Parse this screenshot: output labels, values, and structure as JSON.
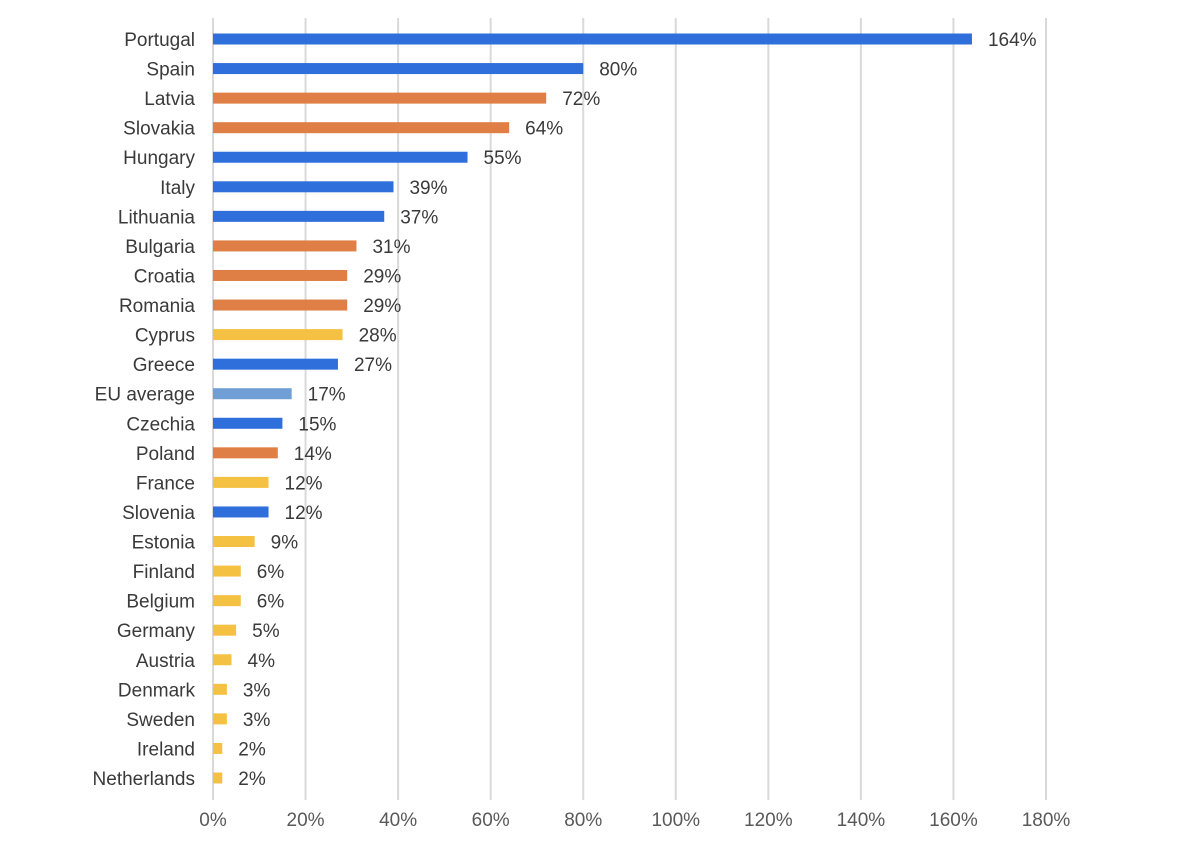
{
  "chart_data": {
    "type": "bar",
    "orientation": "horizontal",
    "title": "",
    "xlabel": "",
    "ylabel": "",
    "xlim": [
      0,
      180
    ],
    "x_tick_values": [
      0,
      20,
      40,
      60,
      80,
      100,
      120,
      140,
      160,
      180
    ],
    "x_tick_labels": [
      "0%",
      "20%",
      "40%",
      "60%",
      "80%",
      "100%",
      "120%",
      "140%",
      "160%",
      "180%"
    ],
    "grid": true,
    "legend": "none",
    "categories": [
      "Portugal",
      "Spain",
      "Latvia",
      "Slovakia",
      "Hungary",
      "Italy",
      "Lithuania",
      "Bulgaria",
      "Croatia",
      "Romania",
      "Cyprus",
      "Greece",
      "EU average",
      "Czechia",
      "Poland",
      "France",
      "Slovenia",
      "Estonia",
      "Finland",
      "Belgium",
      "Germany",
      "Austria",
      "Denmark",
      "Sweden",
      "Ireland",
      "Netherlands"
    ],
    "values": [
      164,
      80,
      72,
      64,
      55,
      39,
      37,
      31,
      29,
      29,
      28,
      27,
      17,
      15,
      14,
      12,
      12,
      9,
      6,
      6,
      5,
      4,
      3,
      3,
      2,
      2
    ],
    "value_labels": [
      "164%",
      "80%",
      "72%",
      "64%",
      "55%",
      "39%",
      "37%",
      "31%",
      "29%",
      "29%",
      "28%",
      "27%",
      "17%",
      "15%",
      "14%",
      "12%",
      "12%",
      "9%",
      "6%",
      "6%",
      "5%",
      "4%",
      "3%",
      "3%",
      "2%",
      "2%"
    ],
    "bar_colors": [
      "#2f6fdb",
      "#2f6fdb",
      "#e07f45",
      "#e07f45",
      "#2f6fdb",
      "#2f6fdb",
      "#2f6fdb",
      "#e07f45",
      "#e07f45",
      "#e07f45",
      "#f4c142",
      "#2f6fdb",
      "#6f9fd4",
      "#2f6fdb",
      "#e07f45",
      "#f4c142",
      "#2f6fdb",
      "#f4c142",
      "#f4c142",
      "#f4c142",
      "#f4c142",
      "#f4c142",
      "#f4c142",
      "#f4c142",
      "#f4c142",
      "#f4c142"
    ]
  }
}
